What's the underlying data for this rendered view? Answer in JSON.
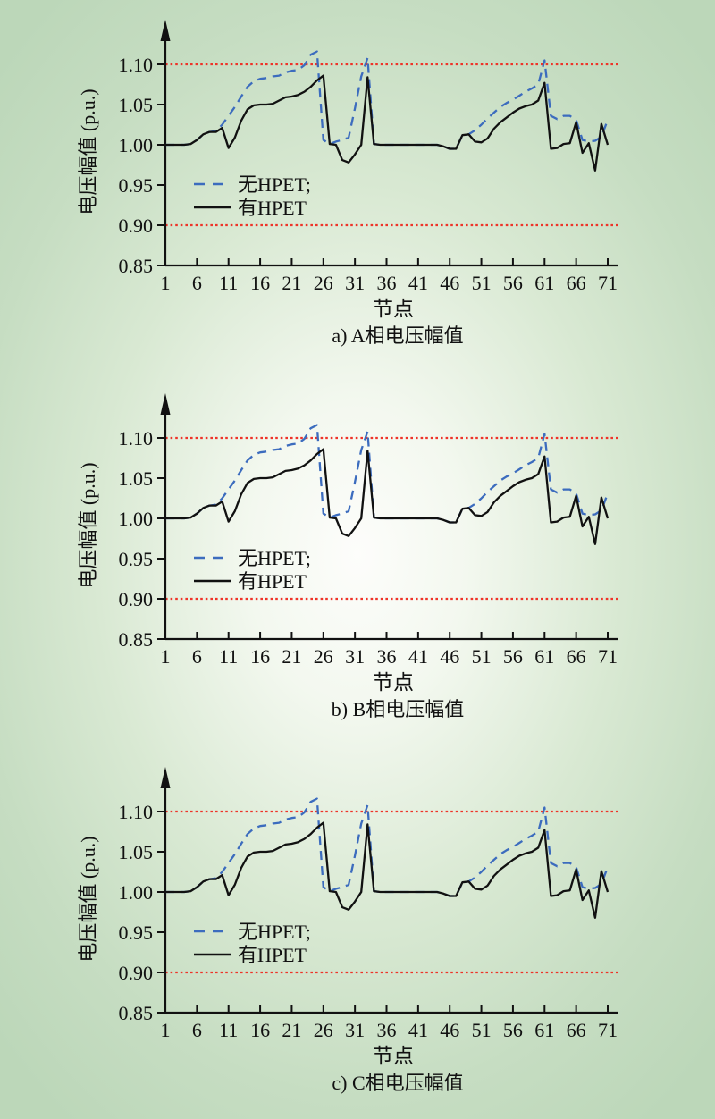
{
  "page": {
    "background_center_color": "#fdfdfb",
    "background_edge_color": "#bcd7b9"
  },
  "chart_data": [
    {
      "id": "chart-a",
      "type": "line",
      "caption": "a) A相电压幅值",
      "xlabel": "节点",
      "ylabel": "电压幅值 (p.u.)",
      "x_ticks": [
        "1",
        "6",
        "11",
        "16",
        "21",
        "26",
        "31",
        "36",
        "41",
        "46",
        "51",
        "56",
        "61",
        "66",
        "71"
      ],
      "y_ticks": [
        "0.85",
        "0.90",
        "0.95",
        "1.00",
        "1.05",
        "1.10"
      ],
      "x_range": [
        1,
        71
      ],
      "ylim": [
        0.85,
        1.135
      ],
      "grid": "off",
      "legend_position": "left-center-inside",
      "limit_lines": [
        1.1,
        0.9
      ],
      "limit_color": "#ee3328",
      "legend": [
        {
          "label": "无HPET;",
          "style": "dashed",
          "color": "#3c6cbe"
        },
        {
          "label": "有HPET",
          "style": "solid",
          "color": "#111111"
        }
      ],
      "series": [
        {
          "name": "无HPET",
          "style": "dashed",
          "color": "#3c6cbe",
          "values": [
            1.0,
            1.0,
            1.0,
            1.0,
            1.001,
            1.006,
            1.013,
            1.016,
            1.017,
            1.025,
            1.036,
            1.047,
            1.06,
            1.072,
            1.079,
            1.082,
            1.083,
            1.085,
            1.086,
            1.09,
            1.092,
            1.093,
            1.099,
            1.112,
            1.116,
            1.006,
            1.001,
            1.004,
            1.006,
            1.009,
            1.045,
            1.085,
            1.108,
            1.001,
            1.0,
            1.0,
            1.0,
            1.0,
            1.0,
            1.0,
            1.0,
            1.0,
            1.0,
            1.0,
            0.998,
            0.995,
            0.995,
            1.012,
            1.013,
            1.018,
            1.025,
            1.033,
            1.04,
            1.047,
            1.052,
            1.056,
            1.061,
            1.066,
            1.07,
            1.075,
            1.105,
            1.036,
            1.032,
            1.036,
            1.036,
            1.031,
            1.006,
            1.004,
            1.005,
            1.01,
            1.031
          ]
        },
        {
          "name": "有HPET",
          "style": "solid",
          "color": "#111111",
          "values": [
            1.0,
            1.0,
            1.0,
            1.0,
            1.001,
            1.006,
            1.013,
            1.016,
            1.016,
            1.021,
            0.996,
            1.009,
            1.03,
            1.044,
            1.049,
            1.05,
            1.05,
            1.051,
            1.055,
            1.059,
            1.06,
            1.062,
            1.066,
            1.072,
            1.08,
            1.086,
            1.001,
            1.0,
            0.981,
            0.978,
            0.988,
            1.0,
            1.084,
            1.001,
            1.0,
            1.0,
            1.0,
            1.0,
            1.0,
            1.0,
            1.0,
            1.0,
            1.0,
            1.0,
            0.998,
            0.995,
            0.995,
            1.012,
            1.013,
            1.004,
            1.003,
            1.008,
            1.02,
            1.028,
            1.034,
            1.04,
            1.045,
            1.048,
            1.05,
            1.055,
            1.077,
            0.995,
            0.996,
            1.001,
            1.002,
            1.028,
            0.99,
            1.002,
            0.968,
            1.026,
            1.0
          ]
        }
      ]
    },
    {
      "id": "chart-b",
      "type": "line",
      "caption": "b) B相电压幅值",
      "xlabel": "节点",
      "ylabel": "电压幅值 (p.u.)",
      "x_ticks": [
        "1",
        "6",
        "11",
        "16",
        "21",
        "26",
        "31",
        "36",
        "41",
        "46",
        "51",
        "56",
        "61",
        "66",
        "71"
      ],
      "y_ticks": [
        "0.85",
        "0.90",
        "0.95",
        "1.00",
        "1.05",
        "1.10"
      ],
      "x_range": [
        1,
        71
      ],
      "ylim": [
        0.85,
        1.135
      ],
      "grid": "off",
      "legend_position": "left-center-inside",
      "limit_lines": [
        1.1,
        0.9
      ],
      "limit_color": "#ee3328",
      "legend": [
        {
          "label": "无HPET;",
          "style": "dashed",
          "color": "#3c6cbe"
        },
        {
          "label": "有HPET",
          "style": "solid",
          "color": "#111111"
        }
      ],
      "series": [
        {
          "name": "无HPET",
          "style": "dashed",
          "color": "#3c6cbe",
          "values": [
            1.0,
            1.0,
            1.0,
            1.0,
            1.001,
            1.006,
            1.013,
            1.016,
            1.017,
            1.025,
            1.036,
            1.047,
            1.06,
            1.072,
            1.079,
            1.082,
            1.083,
            1.085,
            1.086,
            1.09,
            1.092,
            1.093,
            1.099,
            1.112,
            1.116,
            1.006,
            1.001,
            1.004,
            1.006,
            1.009,
            1.045,
            1.085,
            1.108,
            1.001,
            1.0,
            1.0,
            1.0,
            1.0,
            1.0,
            1.0,
            1.0,
            1.0,
            1.0,
            1.0,
            0.998,
            0.995,
            0.995,
            1.012,
            1.013,
            1.018,
            1.025,
            1.033,
            1.04,
            1.047,
            1.052,
            1.056,
            1.061,
            1.066,
            1.07,
            1.075,
            1.105,
            1.036,
            1.032,
            1.036,
            1.036,
            1.031,
            1.006,
            1.004,
            1.005,
            1.01,
            1.031
          ]
        },
        {
          "name": "有HPET",
          "style": "solid",
          "color": "#111111",
          "values": [
            1.0,
            1.0,
            1.0,
            1.0,
            1.001,
            1.006,
            1.013,
            1.016,
            1.016,
            1.021,
            0.996,
            1.009,
            1.03,
            1.044,
            1.049,
            1.05,
            1.05,
            1.051,
            1.055,
            1.059,
            1.06,
            1.062,
            1.066,
            1.072,
            1.08,
            1.086,
            1.001,
            1.0,
            0.981,
            0.978,
            0.988,
            1.0,
            1.084,
            1.001,
            1.0,
            1.0,
            1.0,
            1.0,
            1.0,
            1.0,
            1.0,
            1.0,
            1.0,
            1.0,
            0.998,
            0.995,
            0.995,
            1.012,
            1.013,
            1.004,
            1.003,
            1.008,
            1.02,
            1.028,
            1.034,
            1.04,
            1.045,
            1.048,
            1.05,
            1.055,
            1.077,
            0.995,
            0.996,
            1.001,
            1.002,
            1.028,
            0.99,
            1.002,
            0.968,
            1.026,
            1.0
          ]
        }
      ]
    },
    {
      "id": "chart-c",
      "type": "line",
      "caption": "c) C相电压幅值",
      "xlabel": "节点",
      "ylabel": "电压幅值 (p.u.)",
      "x_ticks": [
        "1",
        "6",
        "11",
        "16",
        "21",
        "26",
        "31",
        "36",
        "41",
        "46",
        "51",
        "56",
        "61",
        "66",
        "71"
      ],
      "y_ticks": [
        "0.85",
        "0.90",
        "0.95",
        "1.00",
        "1.05",
        "1.10"
      ],
      "x_range": [
        1,
        71
      ],
      "ylim": [
        0.85,
        1.135
      ],
      "grid": "off",
      "legend_position": "left-center-inside",
      "limit_lines": [
        1.1,
        0.9
      ],
      "limit_color": "#ee3328",
      "legend": [
        {
          "label": "无HPET;",
          "style": "dashed",
          "color": "#3c6cbe"
        },
        {
          "label": "有HPET",
          "style": "solid",
          "color": "#111111"
        }
      ],
      "series": [
        {
          "name": "无HPET",
          "style": "dashed",
          "color": "#3c6cbe",
          "values": [
            1.0,
            1.0,
            1.0,
            1.0,
            1.001,
            1.006,
            1.013,
            1.016,
            1.017,
            1.025,
            1.036,
            1.047,
            1.06,
            1.072,
            1.079,
            1.082,
            1.083,
            1.085,
            1.086,
            1.09,
            1.092,
            1.093,
            1.099,
            1.112,
            1.116,
            1.006,
            1.001,
            1.004,
            1.006,
            1.009,
            1.045,
            1.085,
            1.108,
            1.001,
            1.0,
            1.0,
            1.0,
            1.0,
            1.0,
            1.0,
            1.0,
            1.0,
            1.0,
            1.0,
            0.998,
            0.995,
            0.995,
            1.012,
            1.013,
            1.018,
            1.025,
            1.033,
            1.04,
            1.047,
            1.052,
            1.056,
            1.061,
            1.066,
            1.07,
            1.075,
            1.105,
            1.036,
            1.032,
            1.036,
            1.036,
            1.031,
            1.006,
            1.004,
            1.005,
            1.01,
            1.031
          ]
        },
        {
          "name": "有HPET",
          "style": "solid",
          "color": "#111111",
          "values": [
            1.0,
            1.0,
            1.0,
            1.0,
            1.001,
            1.006,
            1.013,
            1.016,
            1.016,
            1.021,
            0.996,
            1.009,
            1.03,
            1.044,
            1.049,
            1.05,
            1.05,
            1.051,
            1.055,
            1.059,
            1.06,
            1.062,
            1.066,
            1.072,
            1.08,
            1.086,
            1.001,
            1.0,
            0.981,
            0.978,
            0.988,
            1.0,
            1.084,
            1.001,
            1.0,
            1.0,
            1.0,
            1.0,
            1.0,
            1.0,
            1.0,
            1.0,
            1.0,
            1.0,
            0.998,
            0.995,
            0.995,
            1.012,
            1.013,
            1.004,
            1.003,
            1.008,
            1.02,
            1.028,
            1.034,
            1.04,
            1.045,
            1.048,
            1.05,
            1.055,
            1.077,
            0.995,
            0.996,
            1.001,
            1.002,
            1.028,
            0.99,
            1.002,
            0.968,
            1.026,
            1.0
          ]
        }
      ]
    }
  ]
}
